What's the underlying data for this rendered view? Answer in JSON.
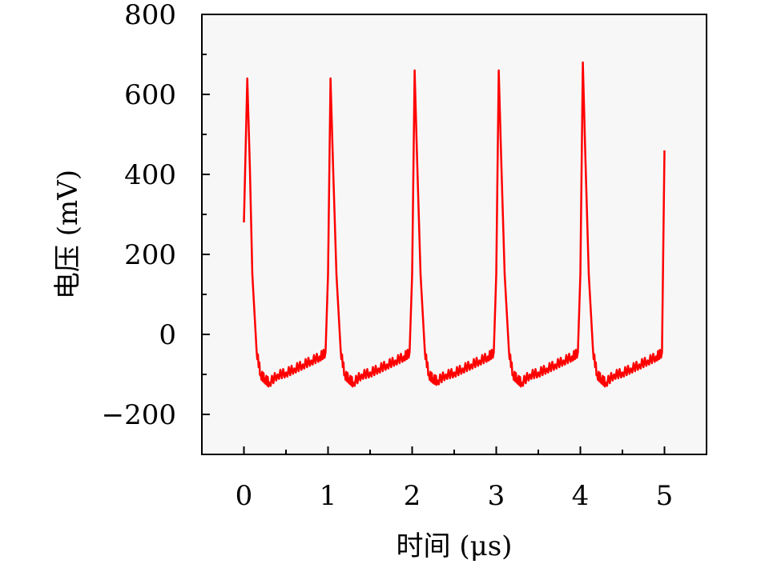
{
  "chart_data": {
    "type": "line",
    "title": "",
    "xlabel": "时间 (μs)",
    "ylabel": "电压 (mV)",
    "xlim": [
      -0.5,
      5.5
    ],
    "ylim": [
      -300,
      800
    ],
    "xticks": [
      0,
      1,
      2,
      3,
      4,
      5
    ],
    "xtick_labels": [
      "0",
      "1",
      "2",
      "3",
      "4",
      "5"
    ],
    "yticks": [
      -200,
      0,
      200,
      400,
      600,
      800
    ],
    "ytick_labels": [
      "−200",
      "0",
      "200",
      "400",
      "600",
      "800"
    ],
    "grid": false,
    "series": [
      {
        "name": "voltage",
        "color": "#ff0000",
        "x": [
          0,
          0.04,
          0.07,
          0.1,
          0.15,
          0.2,
          0.25,
          0.3,
          0.4,
          0.5,
          0.6,
          0.7,
          0.8,
          0.9,
          0.97,
          1,
          1.03,
          1.06,
          1.1,
          1.15,
          1.2,
          1.25,
          1.3,
          1.4,
          1.5,
          1.6,
          1.7,
          1.8,
          1.9,
          1.97,
          2,
          2.03,
          2.06,
          2.1,
          2.15,
          2.2,
          2.25,
          2.3,
          2.4,
          2.5,
          2.6,
          2.7,
          2.8,
          2.9,
          2.97,
          3,
          3.03,
          3.06,
          3.1,
          3.15,
          3.2,
          3.25,
          3.3,
          3.4,
          3.5,
          3.6,
          3.7,
          3.8,
          3.9,
          3.97,
          4,
          4.03,
          4.06,
          4.1,
          4.15,
          4.2,
          4.25,
          4.3,
          4.4,
          4.5,
          4.6,
          4.7,
          4.8,
          4.9,
          4.97,
          5
        ],
        "y": [
          280,
          640,
          420,
          150,
          -40,
          -100,
          -110,
          -120,
          -100,
          -95,
          -85,
          -75,
          -65,
          -55,
          -45,
          150,
          640,
          420,
          150,
          -40,
          -100,
          -110,
          -120,
          -100,
          -95,
          -85,
          -75,
          -65,
          -55,
          -45,
          150,
          660,
          430,
          150,
          -40,
          -100,
          -110,
          -115,
          -100,
          -95,
          -85,
          -75,
          -65,
          -55,
          -45,
          150,
          660,
          430,
          150,
          -40,
          -100,
          -110,
          -120,
          -100,
          -95,
          -85,
          -75,
          -65,
          -55,
          -45,
          150,
          680,
          440,
          150,
          -40,
          -100,
          -110,
          -120,
          -100,
          -95,
          -85,
          -75,
          -65,
          -55,
          -45,
          460
        ]
      }
    ]
  }
}
